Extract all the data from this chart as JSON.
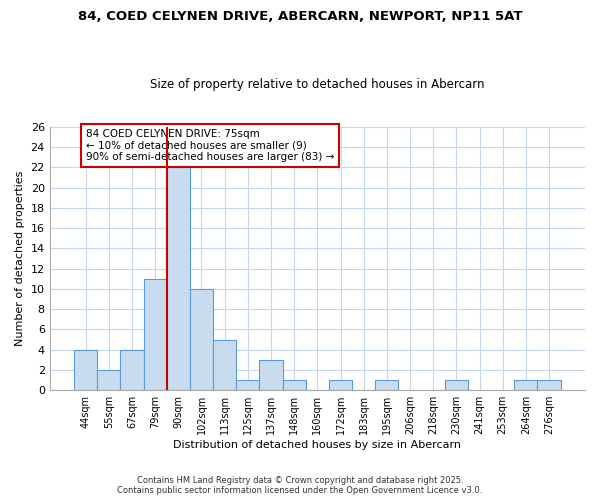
{
  "title": "84, COED CELYNEN DRIVE, ABERCARN, NEWPORT, NP11 5AT",
  "subtitle": "Size of property relative to detached houses in Abercarn",
  "xlabel": "Distribution of detached houses by size in Abercarn",
  "ylabel": "Number of detached properties",
  "bin_labels": [
    "44sqm",
    "55sqm",
    "67sqm",
    "79sqm",
    "90sqm",
    "102sqm",
    "113sqm",
    "125sqm",
    "137sqm",
    "148sqm",
    "160sqm",
    "172sqm",
    "183sqm",
    "195sqm",
    "206sqm",
    "218sqm",
    "230sqm",
    "241sqm",
    "253sqm",
    "264sqm",
    "276sqm"
  ],
  "bar_values": [
    4,
    2,
    4,
    11,
    22,
    10,
    5,
    1,
    3,
    1,
    0,
    1,
    0,
    1,
    0,
    0,
    1,
    0,
    0,
    1,
    1
  ],
  "bar_color": "#c8dcf0",
  "bar_edge_color": "#5b9bd5",
  "vline_bin_index": 3,
  "vline_color": "#cc0000",
  "ylim": [
    0,
    26
  ],
  "yticks": [
    0,
    2,
    4,
    6,
    8,
    10,
    12,
    14,
    16,
    18,
    20,
    22,
    24,
    26
  ],
  "annotation_title": "84 COED CELYNEN DRIVE: 75sqm",
  "annotation_line1": "← 10% of detached houses are smaller (9)",
  "annotation_line2": "90% of semi-detached houses are larger (83) →",
  "annotation_box_color": "#ffffff",
  "annotation_edge_color": "#cc0000",
  "footnote1": "Contains HM Land Registry data © Crown copyright and database right 2025.",
  "footnote2": "Contains public sector information licensed under the Open Government Licence v3.0.",
  "background_color": "#ffffff",
  "grid_color": "#c5d8eb"
}
